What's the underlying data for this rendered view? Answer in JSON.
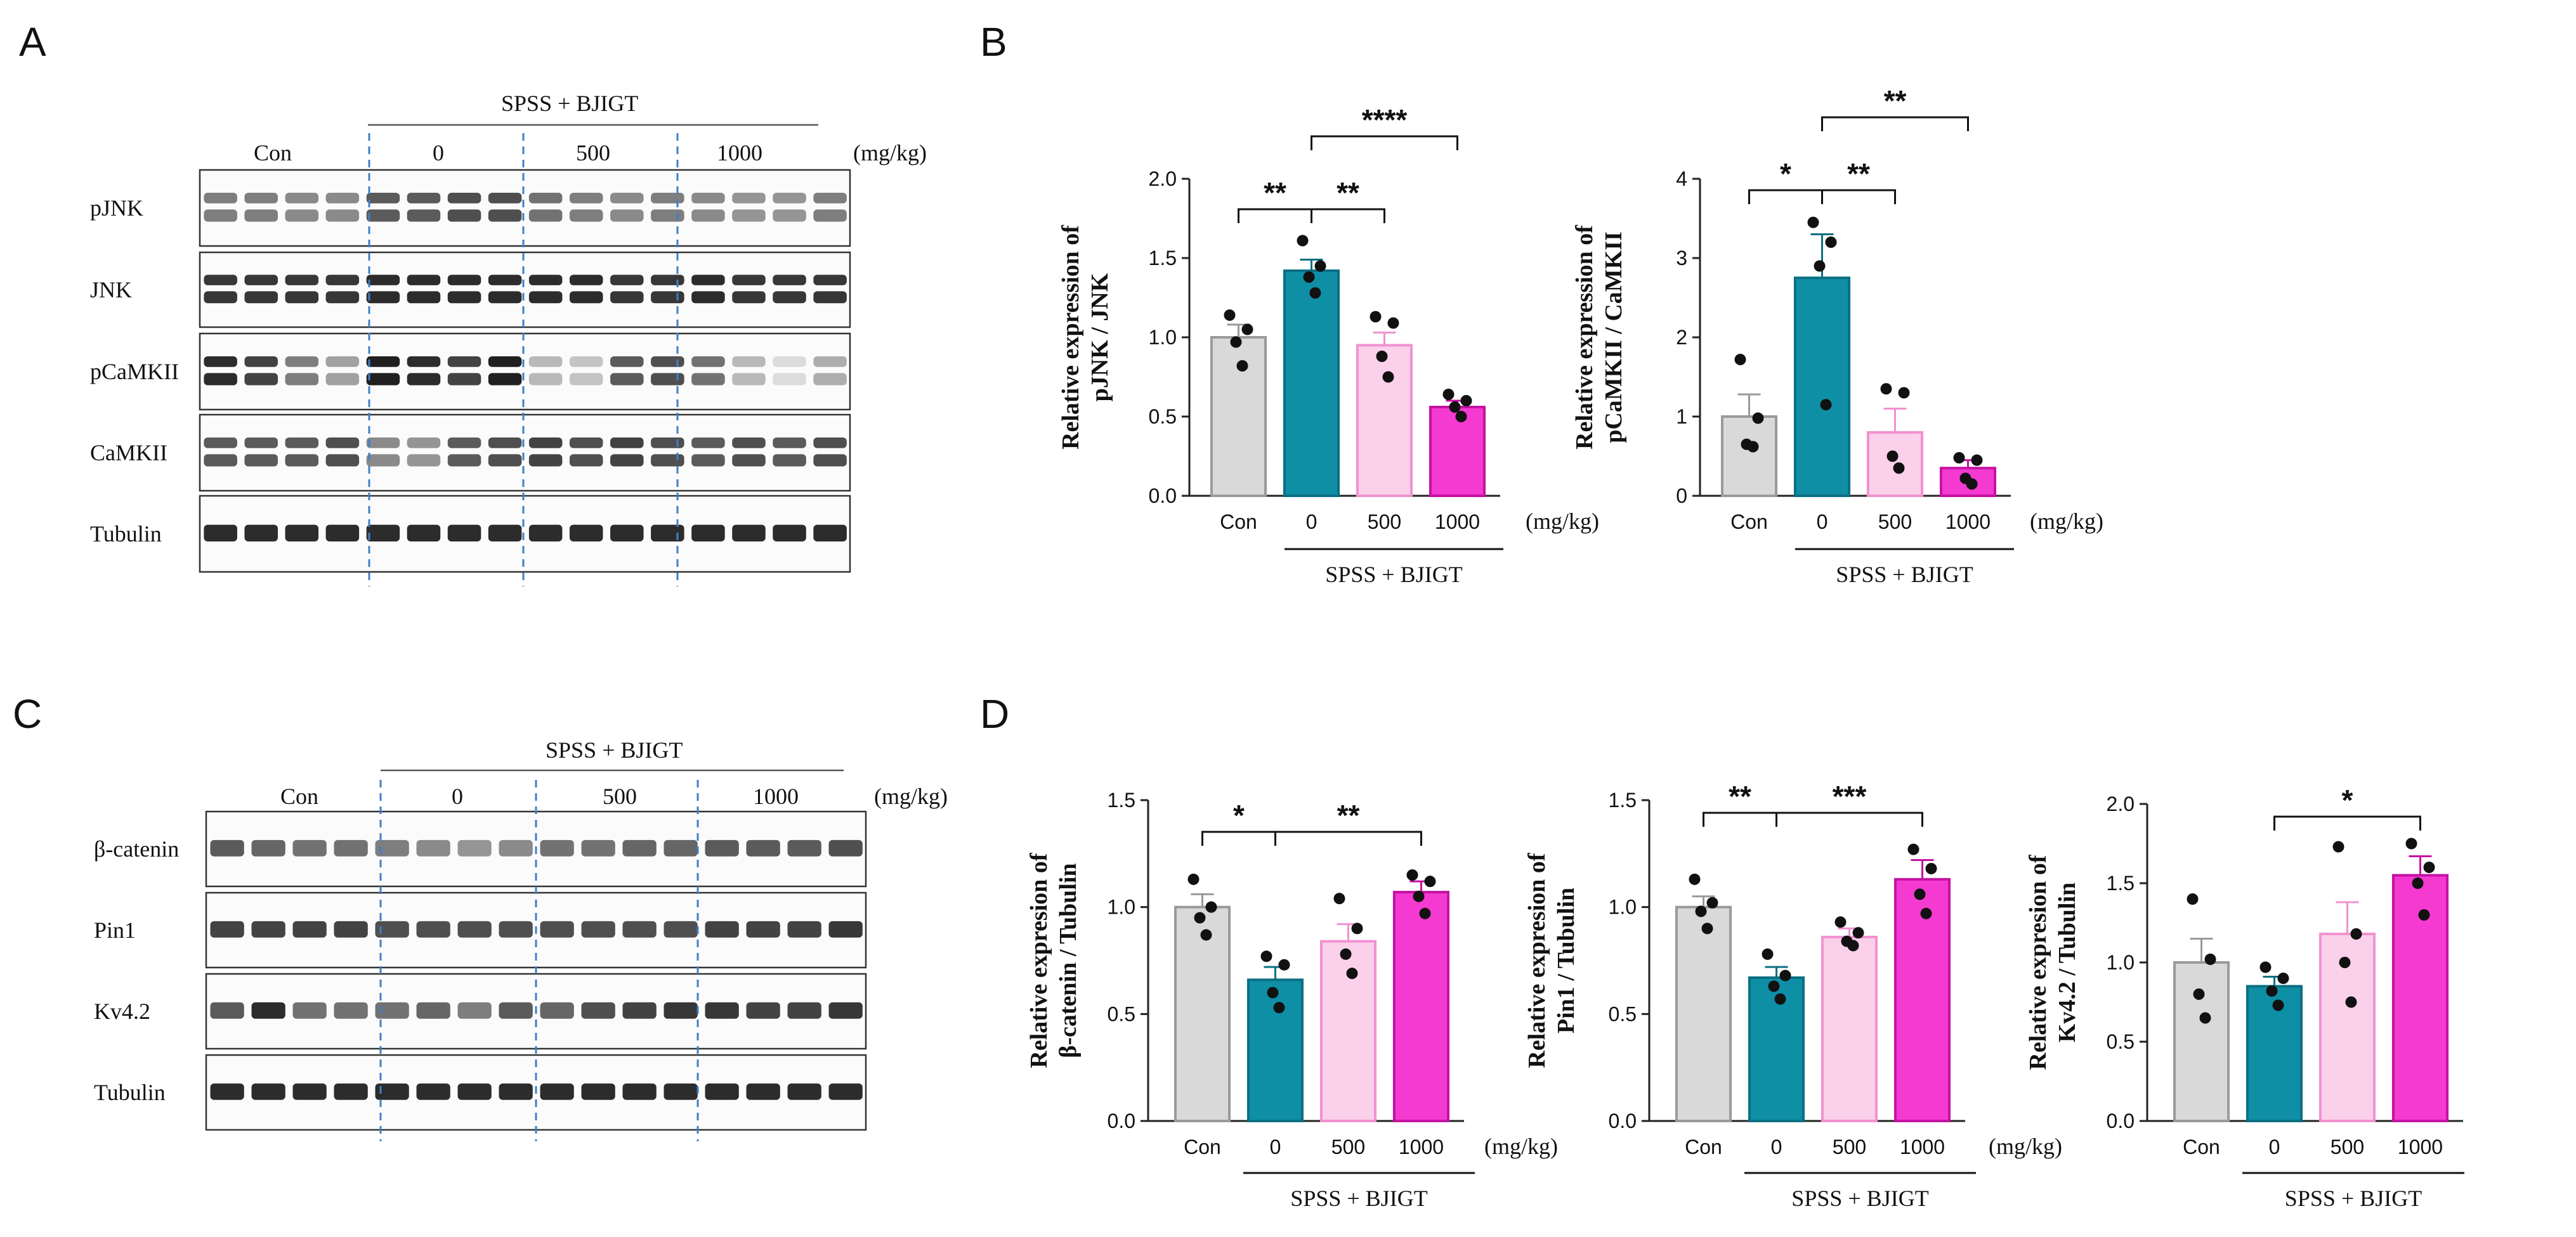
{
  "colors": {
    "con": "#d9d9d9",
    "con_edge": "#9a9a9a",
    "dose0": "#0f8fa6",
    "dose0_edge": "#0b6f82",
    "dose500": "#fbd0eb",
    "dose500_edge": "#f291d0",
    "dose1000": "#f43ad0",
    "dose1000_edge": "#c412a2",
    "divider": "#3f7fc9"
  },
  "panels": {
    "a": "A",
    "b": "B",
    "c": "C",
    "d": "D"
  },
  "units": "(mg/kg)",
  "treatment": "SPSS + BJIGT",
  "groups": [
    "Con",
    "0",
    "500",
    "1000"
  ],
  "blot_a": {
    "rows": [
      "pJNK",
      "JNK",
      "pCaMKII",
      "CaMKII",
      "Tubulin"
    ]
  },
  "blot_c": {
    "rows": [
      "β-catenin",
      "Pin1",
      "Kv4.2",
      "Tubulin"
    ]
  },
  "chart_data": [
    {
      "type": "bar",
      "id": "pjnk",
      "ylabel_line1": "Relative expression of",
      "ylabel_line2": "pJNK / JNK",
      "categories": [
        "Con",
        "0",
        "500",
        "1000"
      ],
      "values": [
        1.0,
        1.42,
        0.95,
        0.56
      ],
      "errors": [
        0.08,
        0.07,
        0.08,
        0.04
      ],
      "points": [
        [
          1.14,
          1.05,
          0.97,
          0.82
        ],
        [
          1.61,
          1.45,
          1.38,
          1.28
        ],
        [
          1.13,
          1.09,
          0.88,
          0.75
        ],
        [
          0.64,
          0.6,
          0.56,
          0.5
        ]
      ],
      "ylim": [
        0,
        2.0
      ],
      "yticks": [
        "0.0",
        "0.5",
        "1.0",
        "1.5",
        "2.0"
      ],
      "ytick_vals": [
        0,
        0.5,
        1.0,
        1.5,
        2.0
      ],
      "significance": [
        {
          "from": 0,
          "to": 1,
          "label": "**"
        },
        {
          "from": 1,
          "to": 2,
          "label": "**"
        },
        {
          "from": 1,
          "to": 3,
          "label": "****"
        }
      ]
    },
    {
      "type": "bar",
      "id": "pcamkii",
      "ylabel_line1": "Relative expression of",
      "ylabel_line2": "pCaMKII / CaMKII",
      "categories": [
        "Con",
        "0",
        "500",
        "1000"
      ],
      "values": [
        1.0,
        2.75,
        0.8,
        0.35
      ],
      "errors": [
        0.28,
        0.55,
        0.3,
        0.1
      ],
      "points": [
        [
          1.72,
          0.98,
          0.65,
          0.62
        ],
        [
          3.45,
          3.2,
          2.9,
          1.15
        ],
        [
          1.35,
          1.3,
          0.5,
          0.35
        ],
        [
          0.48,
          0.45,
          0.22,
          0.15
        ]
      ],
      "ylim": [
        0,
        4
      ],
      "yticks": [
        "0",
        "1",
        "2",
        "3",
        "4"
      ],
      "ytick_vals": [
        0,
        1,
        2,
        3,
        4
      ],
      "significance": [
        {
          "from": 0,
          "to": 1,
          "label": "*"
        },
        {
          "from": 1,
          "to": 2,
          "label": "**"
        },
        {
          "from": 1,
          "to": 3,
          "label": "**"
        }
      ]
    },
    {
      "type": "bar",
      "id": "bcatenin",
      "ylabel_line1": "Relative expresion of",
      "ylabel_line2": "β-catenin / Tubulin",
      "categories": [
        "Con",
        "0",
        "500",
        "1000"
      ],
      "values": [
        1.0,
        0.66,
        0.84,
        1.07
      ],
      "errors": [
        0.06,
        0.06,
        0.08,
        0.05
      ],
      "points": [
        [
          1.13,
          1.0,
          0.95,
          0.87
        ],
        [
          0.77,
          0.73,
          0.6,
          0.53
        ],
        [
          1.04,
          0.9,
          0.78,
          0.69
        ],
        [
          1.15,
          1.12,
          1.05,
          0.97
        ]
      ],
      "ylim": [
        0,
        1.5
      ],
      "yticks": [
        "0.0",
        "0.5",
        "1.0",
        "1.5"
      ],
      "ytick_vals": [
        0,
        0.5,
        1.0,
        1.5
      ],
      "significance": [
        {
          "from": 0,
          "to": 1,
          "label": "*"
        },
        {
          "from": 1,
          "to": 3,
          "label": "**"
        }
      ]
    },
    {
      "type": "bar",
      "id": "pin1",
      "ylabel_line1": "Relative expresion of",
      "ylabel_line2": "Pin1 / Tubulin",
      "categories": [
        "Con",
        "0",
        "500",
        "1000"
      ],
      "values": [
        1.0,
        0.67,
        0.86,
        1.13
      ],
      "errors": [
        0.05,
        0.05,
        0.04,
        0.09
      ],
      "points": [
        [
          1.13,
          1.02,
          0.98,
          0.9
        ],
        [
          0.78,
          0.68,
          0.63,
          0.57
        ],
        [
          0.93,
          0.88,
          0.84,
          0.82
        ],
        [
          1.27,
          1.18,
          1.06,
          0.97
        ]
      ],
      "ylim": [
        0,
        1.5
      ],
      "yticks": [
        "0.0",
        "0.5",
        "1.0",
        "1.5"
      ],
      "ytick_vals": [
        0,
        0.5,
        1.0,
        1.5
      ],
      "significance": [
        {
          "from": 0,
          "to": 1,
          "label": "**"
        },
        {
          "from": 1,
          "to": 3,
          "label": "***"
        }
      ]
    },
    {
      "type": "bar",
      "id": "kv42",
      "ylabel_line1": "Relative expresion of",
      "ylabel_line2": "Kv4.2 / Tubulin",
      "categories": [
        "Con",
        "0",
        "500",
        "1000"
      ],
      "values": [
        1.0,
        0.85,
        1.18,
        1.55
      ],
      "errors": [
        0.15,
        0.06,
        0.2,
        0.12
      ],
      "points": [
        [
          1.4,
          1.02,
          0.8,
          0.65
        ],
        [
          0.97,
          0.9,
          0.82,
          0.73
        ],
        [
          1.73,
          1.18,
          1.0,
          0.75
        ],
        [
          1.75,
          1.6,
          1.5,
          1.3
        ]
      ],
      "ylim": [
        0,
        2.0
      ],
      "yticks": [
        "0.0",
        "0.5",
        "1.0",
        "1.5",
        "2.0"
      ],
      "ytick_vals": [
        0,
        0.5,
        1.0,
        1.5,
        2.0
      ],
      "significance": [
        {
          "from": 1,
          "to": 3,
          "label": "*"
        }
      ]
    }
  ]
}
